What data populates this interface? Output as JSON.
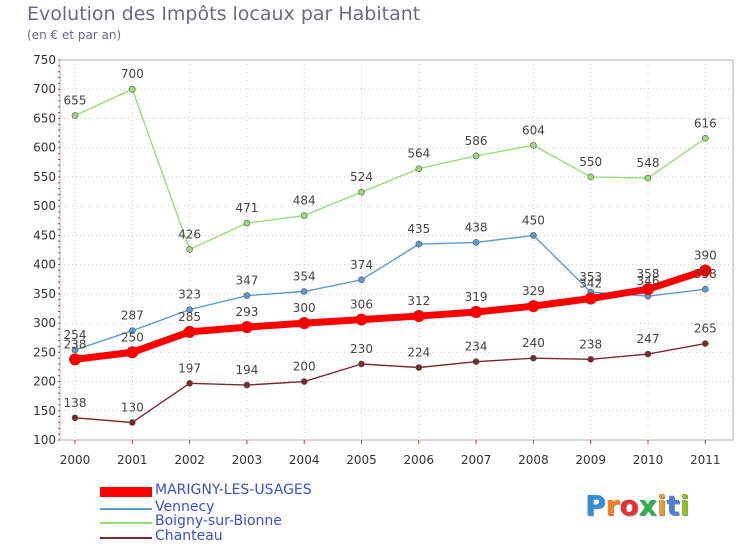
{
  "chart_data": {
    "type": "line",
    "title": "Evolution des Impôts locaux par Habitant",
    "subtitle": "(en € et par an)",
    "x": [
      "2000",
      "2001",
      "2002",
      "2003",
      "2004",
      "2005",
      "2006",
      "2007",
      "2008",
      "2009",
      "2010",
      "2011"
    ],
    "yticks": [
      "100",
      "150",
      "200",
      "250",
      "300",
      "350",
      "400",
      "450",
      "500",
      "550",
      "600",
      "650",
      "700",
      "750"
    ],
    "ylim": [
      100,
      750
    ],
    "grid": true,
    "legend_position": "bottom-left",
    "series": [
      {
        "name": "MARIGNY-LES-USAGES",
        "color": "#ff0000",
        "values": [
          238,
          250,
          285,
          293,
          300,
          306,
          312,
          319,
          329,
          342,
          358,
          390
        ]
      },
      {
        "name": "Vennecy",
        "color": "#5b9bd5",
        "values": [
          254,
          287,
          323,
          347,
          354,
          374,
          435,
          438,
          450,
          353,
          346,
          358
        ]
      },
      {
        "name": "Boigny-sur-Bionne",
        "color": "#99dd77",
        "values": [
          655,
          700,
          426,
          471,
          484,
          524,
          564,
          586,
          604,
          550,
          548,
          616
        ]
      },
      {
        "name": "Chanteau",
        "color": "#7a2a2a",
        "values": [
          138,
          130,
          197,
          194,
          200,
          230,
          224,
          234,
          240,
          238,
          247,
          265
        ]
      }
    ]
  },
  "logo": {
    "text": "Proxiti"
  }
}
